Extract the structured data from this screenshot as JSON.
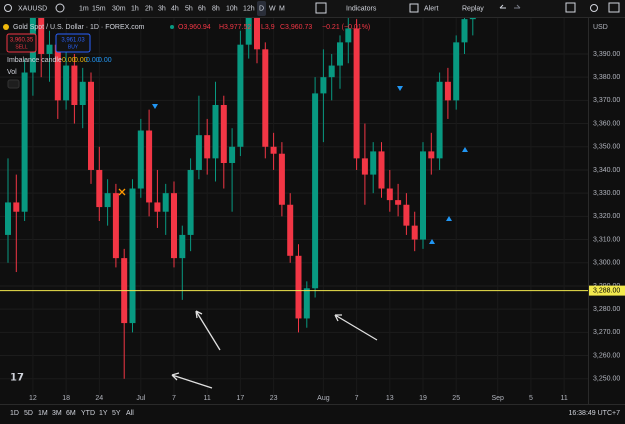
{
  "toolbar": {
    "symbol": "XAUUSD",
    "intervals": [
      "1m",
      "15m",
      "30m",
      "1h",
      "2h",
      "3h",
      "4h",
      "5h",
      "6h",
      "8h",
      "10h",
      "12h",
      "D",
      "W",
      "M"
    ],
    "indicators": "Indicators",
    "alert": "Alert",
    "replay": "Replay"
  },
  "legend": {
    "title": "Gold Spot / U.S. Dollar · 1D · FOREX.com",
    "ohlc": [
      "O3,960.94",
      "H3,977.52",
      "L3,9",
      "C3,960.73"
    ],
    "change": "−0.21 (−0.01%)",
    "sell_price": "3,960.35",
    "sell": "SELL",
    "buy_price": "3,961.03",
    "buy": "BUY",
    "indicator": "Imbalance candle",
    "indicator_values": [
      "0.00",
      "0.00",
      "0.00",
      "0.00"
    ],
    "volume": "Vol"
  },
  "chart_data": {
    "type": "candlestick",
    "currency": "USD",
    "categories": [
      null,
      null,
      null,
      "12",
      null,
      null,
      null,
      "18",
      null,
      null,
      null,
      "24",
      null,
      null,
      null,
      null,
      "Jul",
      null,
      null,
      null,
      "7",
      null,
      null,
      null,
      "11",
      null,
      null,
      null,
      "17",
      null,
      null,
      null,
      "23",
      null,
      null,
      null,
      null,
      null,
      "Aug",
      null,
      null,
      null,
      "7",
      null,
      null,
      null,
      "13",
      null,
      null,
      null,
      "19",
      null,
      null,
      null,
      "25",
      null,
      null,
      null,
      null,
      "Sep",
      null,
      null,
      null,
      "5",
      null,
      null,
      null,
      "11"
    ],
    "open": [
      3312,
      3326,
      3322,
      3382,
      3408,
      3390,
      3394,
      3370,
      3385,
      3368,
      3378,
      3340,
      3324,
      3330,
      3302,
      3274,
      3332,
      3357,
      3326,
      3322,
      3330,
      3302,
      3312,
      3340,
      3355,
      3345,
      3368,
      3343,
      3350,
      3394,
      3415,
      3392,
      3350,
      3347,
      3325,
      3303,
      3276,
      3289,
      3373,
      3380,
      3385,
      3395,
      3401,
      3345,
      3338,
      3348,
      3332,
      3327,
      3325,
      3316,
      3310,
      3348,
      3345,
      3378,
      3370,
      3395,
      3405,
      null,
      null,
      null,
      null,
      null,
      null,
      null,
      null,
      null,
      null,
      null
    ],
    "high": [
      3345,
      3338,
      3388,
      3418,
      3414,
      3400,
      3398,
      3392,
      3390,
      3384,
      3382,
      3350,
      3336,
      3334,
      3306,
      3336,
      3362,
      3366,
      3340,
      3334,
      3335,
      3316,
      3345,
      3372,
      3362,
      3378,
      3372,
      3358,
      3400,
      3425,
      3420,
      3395,
      3356,
      3352,
      3330,
      3308,
      3292,
      3380,
      3392,
      3390,
      3398,
      3410,
      3405,
      3360,
      3352,
      3352,
      3340,
      3334,
      3330,
      3322,
      3352,
      3356,
      3382,
      3384,
      3398,
      3412,
      3418,
      null,
      null,
      null,
      null,
      null,
      null,
      null,
      null,
      null,
      null,
      null
    ],
    "low": [
      3300,
      3296,
      3318,
      3372,
      3380,
      3378,
      3362,
      3366,
      3360,
      3358,
      3334,
      3318,
      3316,
      3298,
      3250,
      3270,
      3328,
      3320,
      3315,
      3312,
      3298,
      3284,
      3305,
      3336,
      3338,
      3335,
      3332,
      3322,
      3346,
      3388,
      3386,
      3345,
      3340,
      3320,
      3300,
      3270,
      3272,
      3285,
      3352,
      3370,
      3375,
      3386,
      3340,
      3325,
      3330,
      3328,
      3322,
      3320,
      3312,
      3305,
      3306,
      3338,
      3340,
      3362,
      3366,
      3390,
      3398,
      null,
      null,
      null,
      null,
      null,
      null,
      null,
      null,
      null,
      null,
      null
    ],
    "close": [
      3326,
      3322,
      3382,
      3408,
      3390,
      3394,
      3370,
      3385,
      3368,
      3378,
      3340,
      3324,
      3330,
      3302,
      3274,
      3332,
      3357,
      3326,
      3322,
      3330,
      3302,
      3312,
      3340,
      3355,
      3345,
      3368,
      3343,
      3350,
      3394,
      3415,
      3392,
      3350,
      3347,
      3325,
      3303,
      3276,
      3289,
      3373,
      3380,
      3385,
      3395,
      3401,
      3345,
      3338,
      3348,
      3332,
      3327,
      3325,
      3316,
      3310,
      3348,
      3345,
      3378,
      3370,
      3395,
      3405,
      3415,
      null,
      null,
      null,
      null,
      null,
      null,
      null,
      null,
      null,
      null,
      null
    ],
    "ylim": [
      3243,
      3405.5
    ],
    "yticks": [
      {
        "value": 3250,
        "label": "3,250.00"
      },
      {
        "value": 3260,
        "label": "3,260.00"
      },
      {
        "value": 3270,
        "label": "3,270.00"
      },
      {
        "value": 3280,
        "label": "3,280.00"
      },
      {
        "value": 3290,
        "label": "3,290.00"
      },
      {
        "value": 3300,
        "label": "3,300.00"
      },
      {
        "value": 3310,
        "label": "3,310.00"
      },
      {
        "value": 3320,
        "label": "3,320.00"
      },
      {
        "value": 3330,
        "label": "3,330.00"
      },
      {
        "value": 3340,
        "label": "3,340.00"
      },
      {
        "value": 3350,
        "label": "3,350.00"
      },
      {
        "value": 3360,
        "label": "3,360.00"
      },
      {
        "value": 3370,
        "label": "3,370.00"
      },
      {
        "value": 3380,
        "label": "3,380.00"
      },
      {
        "value": 3390,
        "label": "3,390.00"
      }
    ],
    "price_line": {
      "value": 3288,
      "label": "3,288.00",
      "color": "#f2e94e"
    },
    "up_color": "#089981",
    "down_color": "#f23645",
    "grid": true
  },
  "bottom_bar": {
    "ranges": [
      "1D",
      "5D",
      "1M",
      "3M",
      "6M",
      "YTD",
      "1Y",
      "5Y",
      "All"
    ],
    "clock": "16:38:49 UTC+7"
  }
}
